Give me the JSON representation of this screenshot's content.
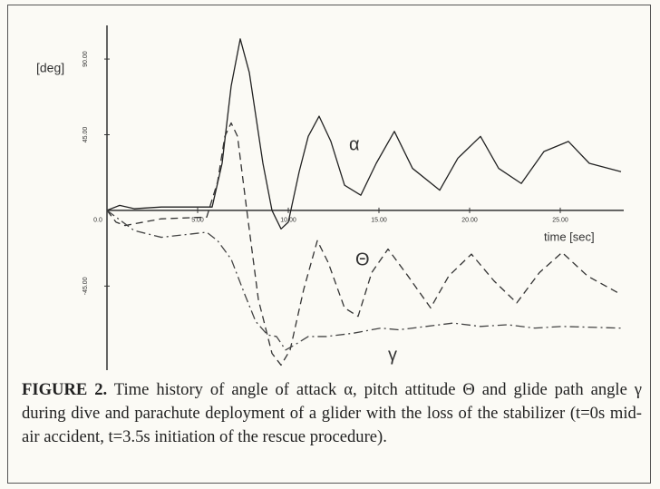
{
  "chart_data": {
    "type": "line",
    "ylabel": "[deg]",
    "xlabel": "time [sec]",
    "xlim": [
      0,
      28.5
    ],
    "ylim": [
      -95,
      110
    ],
    "xticks": [
      {
        "value": 0,
        "label": "0.0"
      },
      {
        "value": 5,
        "label": "5.00"
      },
      {
        "value": 10,
        "label": "10.00"
      },
      {
        "value": 15,
        "label": "15.00"
      },
      {
        "value": 20,
        "label": "20.00"
      },
      {
        "value": 25,
        "label": "25.00"
      }
    ],
    "yticks": [
      {
        "value": 90,
        "label": "90.00"
      },
      {
        "value": 45,
        "label": "45.00"
      },
      {
        "value": -45,
        "label": "-45.00"
      }
    ],
    "grid": false,
    "series": [
      {
        "name": "α",
        "color": "#222222",
        "dash": "solid",
        "x": [
          0,
          0.7,
          1.5,
          3,
          5.8,
          6.35,
          6.85,
          7.35,
          7.85,
          8.6,
          9.1,
          9.6,
          10,
          10.6,
          11.1,
          11.7,
          12.35,
          13.1,
          14,
          14.85,
          15.85,
          16.85,
          18.35,
          19.35,
          20.6,
          21.6,
          22.85,
          24.1,
          25.45,
          26.6,
          28.35
        ],
        "values": [
          0,
          3,
          1,
          2,
          2,
          28,
          74,
          102,
          82,
          28,
          0,
          -11,
          -7,
          23,
          44,
          56,
          41,
          15,
          9,
          28,
          47,
          25,
          12,
          31,
          44,
          25,
          16,
          35,
          41,
          28,
          23
        ]
      },
      {
        "name": "Θ",
        "color": "#333333",
        "dash": "dashed",
        "x": [
          0,
          0.5,
          1,
          3,
          5.5,
          6.1,
          6.5,
          6.85,
          7.2,
          7.7,
          8.35,
          9.1,
          9.6,
          10.1,
          10.85,
          11.6,
          12.2,
          13.1,
          13.85,
          14.6,
          15.5,
          16.6,
          17.85,
          18.85,
          20.1,
          21.35,
          22.6,
          23.85,
          25.1,
          26.5,
          28.35
        ],
        "values": [
          0,
          -7,
          -9,
          -5,
          -4,
          17,
          44,
          52,
          44,
          1,
          -53,
          -85,
          -92,
          -83,
          -47,
          -18,
          -31,
          -58,
          -63,
          -37,
          -23,
          -39,
          -58,
          -39,
          -26,
          -42,
          -55,
          -37,
          -25,
          -39,
          -50
        ]
      },
      {
        "name": "γ",
        "color": "#444444",
        "dash": "dashdot",
        "x": [
          0,
          1.5,
          3,
          5.5,
          6.1,
          6.85,
          7.6,
          8.2,
          8.85,
          9.35,
          9.85,
          10.35,
          11.1,
          12.1,
          13.6,
          15.1,
          16.1,
          17.6,
          19.1,
          20.6,
          22.1,
          23.6,
          25.1,
          28.35
        ],
        "values": [
          0,
          -12,
          -16,
          -13,
          -18,
          -29,
          -50,
          -66,
          -74,
          -75,
          -83,
          -80,
          -75,
          -75,
          -73,
          -70,
          -71,
          -69,
          -67,
          -69,
          -68,
          -70,
          -69,
          -70
        ]
      }
    ]
  },
  "caption": {
    "label": "FIGURE 2.",
    "text": " Time history of angle of attack α, pitch attitude Θ and glide path angle γ during dive and parachute deployment of a glider with the loss of the stabilizer (t=0s mid-air accident, t=3.5s initiation of the rescue procedure)."
  }
}
